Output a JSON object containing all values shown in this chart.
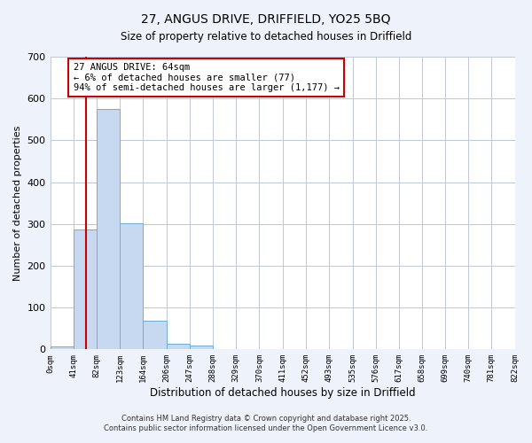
{
  "title_line1": "27, ANGUS DRIVE, DRIFFIELD, YO25 5BQ",
  "title_line2": "Size of property relative to detached houses in Driffield",
  "bar_edges": [
    0,
    41,
    82,
    123,
    164,
    206,
    247,
    288,
    329,
    370,
    411,
    452,
    493,
    535,
    576,
    617,
    658,
    699,
    740,
    781,
    822
  ],
  "bar_heights": [
    8,
    286,
    575,
    301,
    68,
    14,
    9,
    0,
    0,
    0,
    0,
    0,
    0,
    0,
    0,
    0,
    0,
    0,
    0,
    0
  ],
  "bar_color": "#c6d9f0",
  "bar_edge_color": "#6baed6",
  "property_line_x": 64,
  "property_line_color": "#cc0000",
  "annotation_text": "27 ANGUS DRIVE: 64sqm\n← 6% of detached houses are smaller (77)\n94% of semi-detached houses are larger (1,177) →",
  "annotation_box_edge_color": "#cc0000",
  "annotation_box_face_color": "#ffffff",
  "xlabel": "Distribution of detached houses by size in Driffield",
  "ylabel": "Number of detached properties",
  "ylim": [
    0,
    700
  ],
  "yticks": [
    0,
    100,
    200,
    300,
    400,
    500,
    600,
    700
  ],
  "xtick_labels": [
    "0sqm",
    "41sqm",
    "82sqm",
    "123sqm",
    "164sqm",
    "206sqm",
    "247sqm",
    "288sqm",
    "329sqm",
    "370sqm",
    "411sqm",
    "452sqm",
    "493sqm",
    "535sqm",
    "576sqm",
    "617sqm",
    "658sqm",
    "699sqm",
    "740sqm",
    "781sqm",
    "822sqm"
  ],
  "footer_line1": "Contains HM Land Registry data © Crown copyright and database right 2025.",
  "footer_line2": "Contains public sector information licensed under the Open Government Licence v3.0.",
  "bg_color": "#eef2fb",
  "plot_bg_color": "#ffffff",
  "grid_color": "#c0c8d8",
  "xlim": [
    0,
    822
  ]
}
